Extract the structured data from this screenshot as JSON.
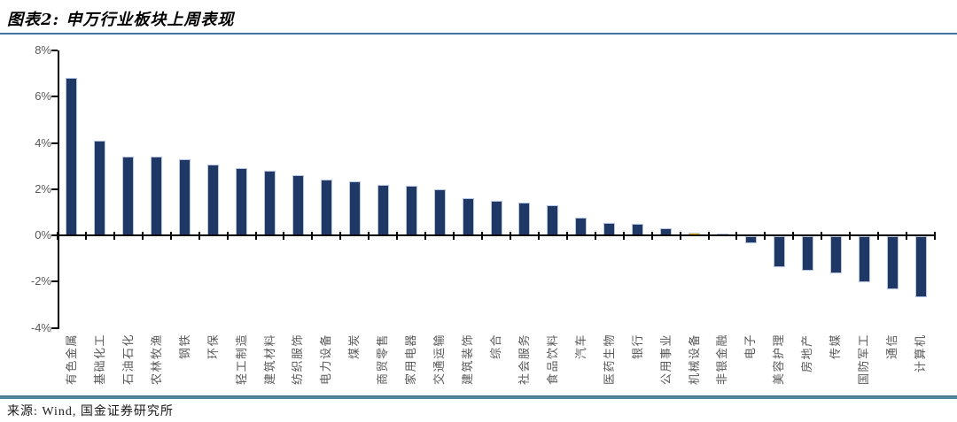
{
  "header": {
    "title": "图表2:  申万行业板块上周表现"
  },
  "footer": {
    "source": "来源: Wind, 国金证券研究所"
  },
  "colors": {
    "bar": "#1F3864",
    "bar_border": "#B7C5E4",
    "highlight": "#FFC000",
    "axis": "#000000",
    "label": "#595959",
    "title_rule": "#41719C",
    "footer_rule": "#55889F"
  },
  "chart_data": {
    "type": "bar",
    "title": "申万行业板块上周表现",
    "xlabel": "",
    "ylabel": "",
    "ylim": [
      -4,
      8
    ],
    "y_ticks": [
      "8%",
      "6%",
      "4%",
      "2%",
      "0%",
      "-2%",
      "-4%"
    ],
    "grid": false,
    "legend": "none",
    "unit": "%",
    "categories": [
      "有色金属",
      "基础化工",
      "石油石化",
      "农林牧渔",
      "钢铁",
      "环保",
      "轻工制造",
      "建筑材料",
      "纺织服饰",
      "电力设备",
      "煤炭",
      "商贸零售",
      "家用电器",
      "交通运输",
      "建筑装饰",
      "综合",
      "社会服务",
      "食品饮料",
      "汽车",
      "医药生物",
      "银行",
      "公用事业",
      "机械设备",
      "非银金融",
      "电子",
      "美容护理",
      "房地产",
      "传媒",
      "国防军工",
      "通信",
      "计算机"
    ],
    "values": [
      6.8,
      4.1,
      3.4,
      3.4,
      3.3,
      3.05,
      2.9,
      2.8,
      2.6,
      2.4,
      2.35,
      2.2,
      2.15,
      2.0,
      1.6,
      1.5,
      1.4,
      1.3,
      0.75,
      0.55,
      0.5,
      0.3,
      0.13,
      0.07,
      -0.3,
      -1.35,
      -1.5,
      -1.6,
      -2.0,
      -2.3,
      -2.65
    ],
    "highlight_category": "机械设备",
    "highlight_color": "#FFC000"
  }
}
